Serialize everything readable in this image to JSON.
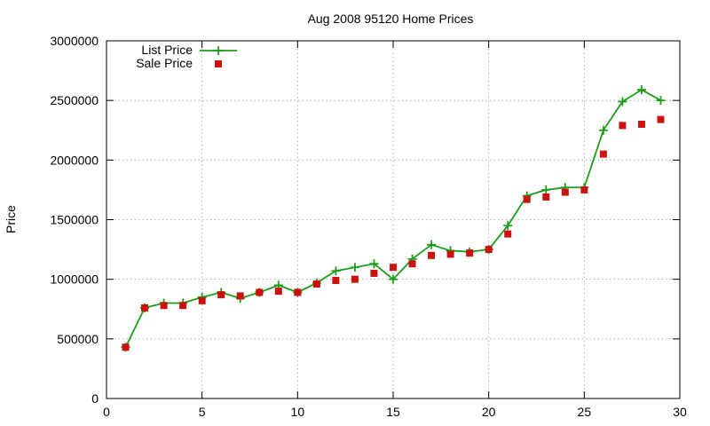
{
  "chart_data": {
    "type": "line",
    "title": "Aug 2008 95120 Home Prices",
    "xlabel": "",
    "ylabel": "Price",
    "xlim": [
      0,
      30
    ],
    "ylim": [
      0,
      3000000
    ],
    "xticks": [
      0,
      5,
      10,
      15,
      20,
      25,
      30
    ],
    "yticks": [
      0,
      500000,
      1000000,
      1500000,
      2000000,
      2500000,
      3000000
    ],
    "grid": true,
    "legend": "top-left",
    "x": [
      1,
      2,
      3,
      4,
      5,
      6,
      7,
      8,
      9,
      10,
      11,
      12,
      13,
      14,
      15,
      16,
      17,
      18,
      19,
      20,
      21,
      22,
      23,
      24,
      25,
      26,
      27,
      28,
      29
    ],
    "series": [
      {
        "name": "List Price",
        "style": "lines+points",
        "marker": "plus",
        "color": "#1a9e1a",
        "values": [
          430000,
          760000,
          800000,
          800000,
          850000,
          890000,
          840000,
          890000,
          950000,
          890000,
          970000,
          1070000,
          1100000,
          1130000,
          1000000,
          1170000,
          1290000,
          1240000,
          1230000,
          1250000,
          1450000,
          1700000,
          1750000,
          1770000,
          1770000,
          2250000,
          2490000,
          2590000,
          2500000
        ]
      },
      {
        "name": "Sale Price",
        "style": "points",
        "marker": "square",
        "color": "#cc1111",
        "values": [
          430000,
          760000,
          780000,
          780000,
          820000,
          870000,
          860000,
          890000,
          900000,
          890000,
          960000,
          990000,
          1000000,
          1050000,
          1100000,
          1130000,
          1200000,
          1210000,
          1220000,
          1250000,
          1380000,
          1670000,
          1690000,
          1730000,
          1750000,
          2050000,
          2290000,
          2300000,
          2340000
        ]
      }
    ]
  }
}
